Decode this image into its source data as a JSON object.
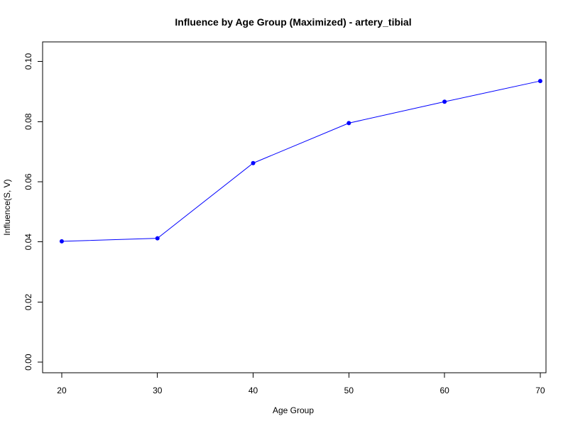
{
  "chart_data": {
    "type": "line",
    "title": "Influence by Age Group (Maximized) - artery_tibial",
    "xlabel": "Age Group",
    "ylabel": "Influence(S, V)",
    "x": [
      20,
      30,
      40,
      50,
      60,
      70
    ],
    "series": [
      {
        "values": [
          0.0402,
          0.0412,
          0.0662,
          0.0795,
          0.0866,
          0.0935
        ]
      }
    ],
    "xticks": [
      "20",
      "30",
      "40",
      "50",
      "60",
      "70"
    ],
    "yticks": [
      "0.00",
      "0.02",
      "0.04",
      "0.06",
      "0.08",
      "0.10"
    ],
    "xlim": [
      18,
      70.6
    ],
    "ylim": [
      -0.0035,
      0.1065
    ],
    "grid": false,
    "line_color": "#0000ff",
    "point_color": "#0000ff"
  }
}
